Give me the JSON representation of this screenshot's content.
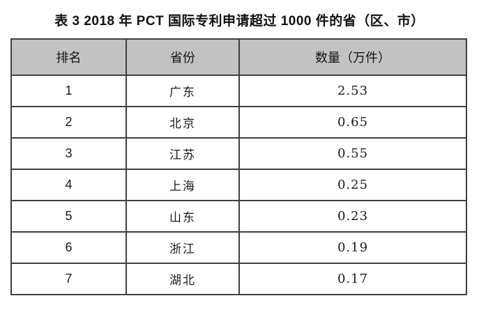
{
  "title": "表 3 2018 年 PCT 国际专利申请超过 1000 件的省（区、市）",
  "colors": {
    "page_bg": "#ffffff",
    "header_bg": "#c2c2c2",
    "border": "#3f3f3f",
    "text": "#1a1a1a"
  },
  "chart_data": {
    "type": "table",
    "title": "表 3 2018 年 PCT 国际专利申请超过 1000 件的省（区、市）",
    "unit": "万件",
    "columns": [
      "排名",
      "省份",
      "数量（万件）"
    ],
    "rows": [
      [
        "1",
        "广东",
        "2.53"
      ],
      [
        "2",
        "北京",
        "0.65"
      ],
      [
        "3",
        "江苏",
        "0.55"
      ],
      [
        "4",
        "上海",
        "0.25"
      ],
      [
        "5",
        "山东",
        "0.23"
      ],
      [
        "6",
        "浙江",
        "0.19"
      ],
      [
        "7",
        "湖北",
        "0.17"
      ]
    ],
    "categories": [
      "广东",
      "北京",
      "江苏",
      "上海",
      "山东",
      "浙江",
      "湖北"
    ],
    "values": [
      2.53,
      0.65,
      0.55,
      0.25,
      0.23,
      0.19,
      0.17
    ]
  }
}
